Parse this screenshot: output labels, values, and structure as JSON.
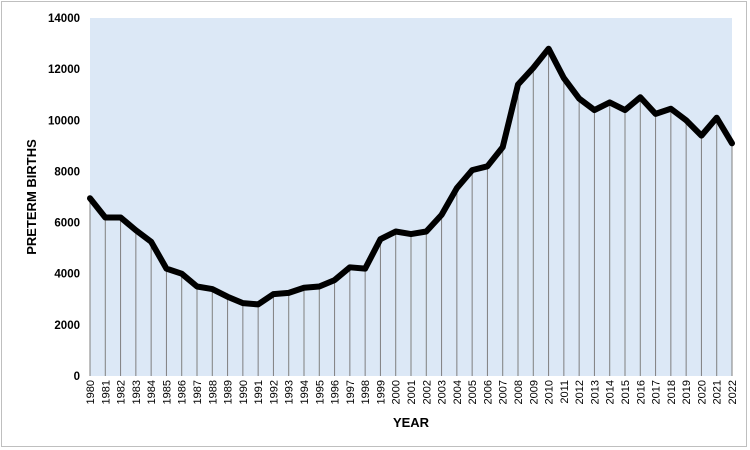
{
  "chart_data": {
    "type": "area",
    "title": "",
    "xlabel": "YEAR",
    "ylabel": "PRETERM BIRTHS",
    "ylim": [
      0,
      14000
    ],
    "yticks": [
      0,
      2000,
      4000,
      6000,
      8000,
      10000,
      12000,
      14000
    ],
    "grid": "vertical drop lines at each year",
    "legend": "none",
    "colors": {
      "fill": "#dce8f6",
      "line": "#000000",
      "droplines": "#7f7f7f"
    },
    "x": [
      1980,
      1981,
      1982,
      1983,
      1984,
      1985,
      1986,
      1987,
      1988,
      1989,
      1990,
      1991,
      1992,
      1993,
      1994,
      1995,
      1996,
      1997,
      1998,
      1999,
      2000,
      2001,
      2002,
      2003,
      2004,
      2005,
      2006,
      2007,
      2008,
      2009,
      2010,
      2011,
      2012,
      2013,
      2014,
      2015,
      2016,
      2017,
      2018,
      2019,
      2020,
      2021,
      2022
    ],
    "values": [
      6950,
      6200,
      6200,
      5700,
      5250,
      4200,
      4000,
      3500,
      3400,
      3100,
      2850,
      2800,
      3200,
      3250,
      3450,
      3500,
      3750,
      4250,
      4200,
      5350,
      5650,
      5550,
      5650,
      6300,
      7350,
      8050,
      8200,
      8950,
      11400,
      12050,
      12800,
      11650,
      10850,
      10400,
      10700,
      10400,
      10900,
      10250,
      10450,
      10000,
      9400,
      10100,
      9100
    ]
  }
}
